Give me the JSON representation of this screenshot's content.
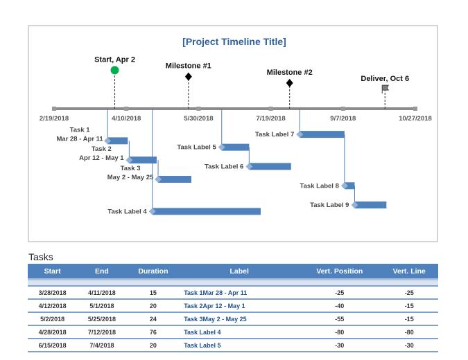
{
  "chart_data": {
    "type": "timeline",
    "title": "[Project Timeline Title]",
    "axis": {
      "start": "2018-02-19",
      "end": "2018-10-27",
      "tick_labels": [
        "2/19/2018",
        "4/10/2018",
        "5/30/2018",
        "7/19/2018",
        "9/7/2018",
        "10/27/2018"
      ]
    },
    "milestones": [
      {
        "label": "Start, Apr 2",
        "date": "2018-04-02",
        "height": 30,
        "marker": "circle",
        "color": "#00b050"
      },
      {
        "label": "Milestone #1",
        "date": "2018-05-23",
        "height": 25,
        "marker": "diamond",
        "color": "#000000"
      },
      {
        "label": "Milestone #2",
        "date": "2018-08-01",
        "height": 20,
        "marker": "diamond",
        "color": "#000000"
      },
      {
        "label": "Deliver, Oct 6",
        "date": "2018-10-06",
        "height": 15,
        "marker": "flag",
        "color": "#808080"
      }
    ],
    "tasks": [
      {
        "label": [
          "Task 1",
          "Mar 28 - Apr 11"
        ],
        "start": "2018-03-28",
        "end": "2018-04-11",
        "vpos": -25,
        "vline": -25
      },
      {
        "label": [
          "Task 2",
          "Apr 12 - May 1"
        ],
        "start": "2018-04-12",
        "end": "2018-05-01",
        "vpos": -40,
        "vline": -15
      },
      {
        "label": [
          "Task 3",
          "May 2 - May 25"
        ],
        "start": "2018-05-02",
        "end": "2018-05-25",
        "vpos": -55,
        "vline": -15
      },
      {
        "label": [
          "Task Label 4"
        ],
        "start": "2018-04-28",
        "end": "2018-07-12",
        "vpos": -80,
        "vline": -80
      },
      {
        "label": [
          "Task Label 5"
        ],
        "start": "2018-06-15",
        "end": "2018-07-04",
        "vpos": -30,
        "vline": -30
      },
      {
        "label": [
          "Task Label 6"
        ],
        "start": "2018-07-04",
        "end": "2018-08-02",
        "vpos": -45,
        "vline": -15
      },
      {
        "label": [
          "Task Label 7"
        ],
        "start": "2018-08-08",
        "end": "2018-09-08",
        "vpos": -20,
        "vline": -20
      },
      {
        "label": [
          "Task Label 8"
        ],
        "start": "2018-09-08",
        "end": "2018-09-15",
        "vpos": -60,
        "vline": -40
      },
      {
        "label": [
          "Task Label 9"
        ],
        "start": "2018-09-15",
        "end": "2018-10-07",
        "vpos": -75,
        "vline": -15
      }
    ],
    "colors": {
      "bar": "#4f81bd",
      "axis": "#8c8c8c",
      "title": "#2e5f9e"
    }
  },
  "table": {
    "title": "Tasks",
    "headers": [
      "Start",
      "End",
      "Duration",
      "Label",
      "Vert. Position",
      "Vert. Line"
    ],
    "rows": [
      [
        "3/28/2018",
        "4/11/2018",
        "15",
        "Task 1Mar 28 - Apr 11",
        "-25",
        "-25"
      ],
      [
        "4/12/2018",
        "5/1/2018",
        "20",
        "Task 2Apr 12 - May 1",
        "-40",
        "-15"
      ],
      [
        "5/2/2018",
        "5/25/2018",
        "24",
        "Task 3May 2 - May 25",
        "-55",
        "-15"
      ],
      [
        "4/28/2018",
        "7/12/2018",
        "76",
        "Task Label 4",
        "-80",
        "-80"
      ],
      [
        "6/15/2018",
        "7/4/2018",
        "20",
        "Task Label 5",
        "-30",
        "-30"
      ]
    ]
  }
}
